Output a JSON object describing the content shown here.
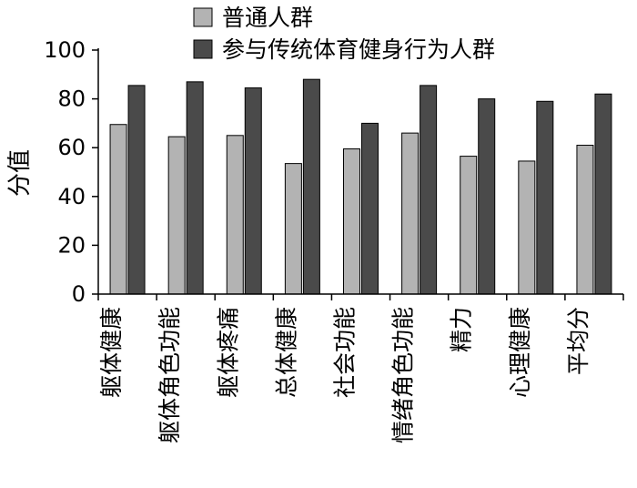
{
  "chart_data": {
    "type": "bar",
    "title": "",
    "xlabel": "",
    "ylabel": "分值",
    "ylim": [
      0,
      100
    ],
    "yticks": [
      0,
      20,
      40,
      60,
      80,
      100
    ],
    "grid": false,
    "legend_position": "top-right",
    "categories": [
      "躯体健康",
      "躯体角色功能",
      "躯体疼痛",
      "总体健康",
      "社会功能",
      "情绪角色功能",
      "精力",
      "心理健康",
      "平均分"
    ],
    "series": [
      {
        "name": "普通人群",
        "color": "#b3b3b3",
        "values": [
          69.5,
          64.5,
          65,
          53.5,
          59.5,
          66,
          56.5,
          54.5,
          61
        ]
      },
      {
        "name": "参与传统体育健身行为人群",
        "color": "#4a4a4a",
        "values": [
          85.5,
          87,
          84.5,
          88,
          70,
          85.5,
          80,
          79,
          82
        ]
      }
    ]
  }
}
